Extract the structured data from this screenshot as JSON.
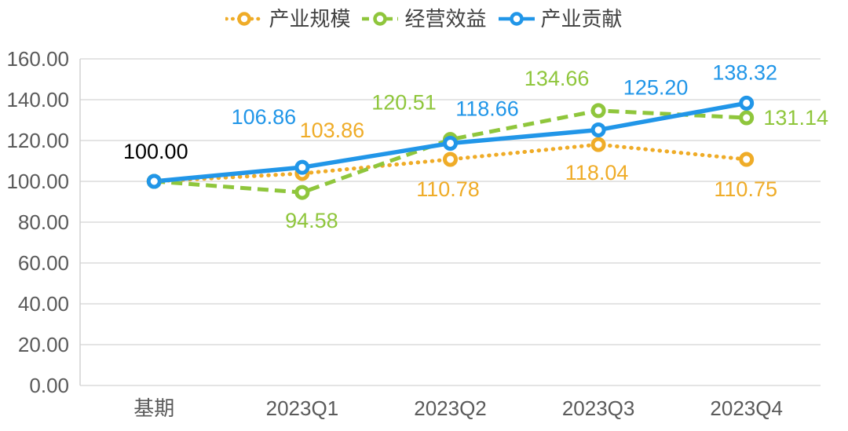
{
  "chart_data": {
    "type": "line",
    "title": "",
    "categories": [
      "基期",
      "2023Q1",
      "2023Q2",
      "2023Q3",
      "2023Q4"
    ],
    "series": [
      {
        "name": "产业规模",
        "values": [
          100.0,
          103.86,
          110.78,
          118.04,
          110.75
        ],
        "color": "#EFAC28",
        "style": "dotted"
      },
      {
        "name": "经营效益",
        "values": [
          100.0,
          94.58,
          120.51,
          134.66,
          131.14
        ],
        "color": "#8FC63C",
        "style": "dashed"
      },
      {
        "name": "产业贡献",
        "values": [
          100.0,
          106.86,
          118.66,
          125.2,
          138.32
        ],
        "color": "#2196E8",
        "style": "solid"
      }
    ],
    "base_point_label": {
      "text": "100.00",
      "color": "#000000",
      "series_index": 2,
      "point_index": 0
    },
    "ylim": [
      0,
      160
    ],
    "ytick_step": 20,
    "ytick_labels": [
      "0.00",
      "20.00",
      "40.00",
      "60.00",
      "80.00",
      "100.00",
      "120.00",
      "140.00",
      "160.00"
    ],
    "xlabel": "",
    "ylabel": "",
    "grid": true,
    "legend_position": "top",
    "axis_text_color": "#5A5A5A",
    "grid_color": "#DCDCDC",
    "axis_line_color": "#D2D2D2",
    "legend_text_color": "#404040",
    "label_decimals": 2,
    "label_offsets": [
      [
        null,
        [
          38,
          -55
        ],
        [
          -3,
          38
        ],
        [
          -2,
          36
        ],
        [
          -1,
          38
        ]
      ],
      [
        null,
        [
          12,
          36
        ],
        [
          -59,
          -47
        ],
        [
          -53,
          -41
        ],
        [
          63,
          0
        ]
      ],
      [
        [
          2,
          -38
        ],
        [
          -49,
          -64
        ],
        [
          47,
          -44
        ],
        [
          73,
          -54
        ],
        [
          -2,
          -39
        ]
      ]
    ]
  }
}
